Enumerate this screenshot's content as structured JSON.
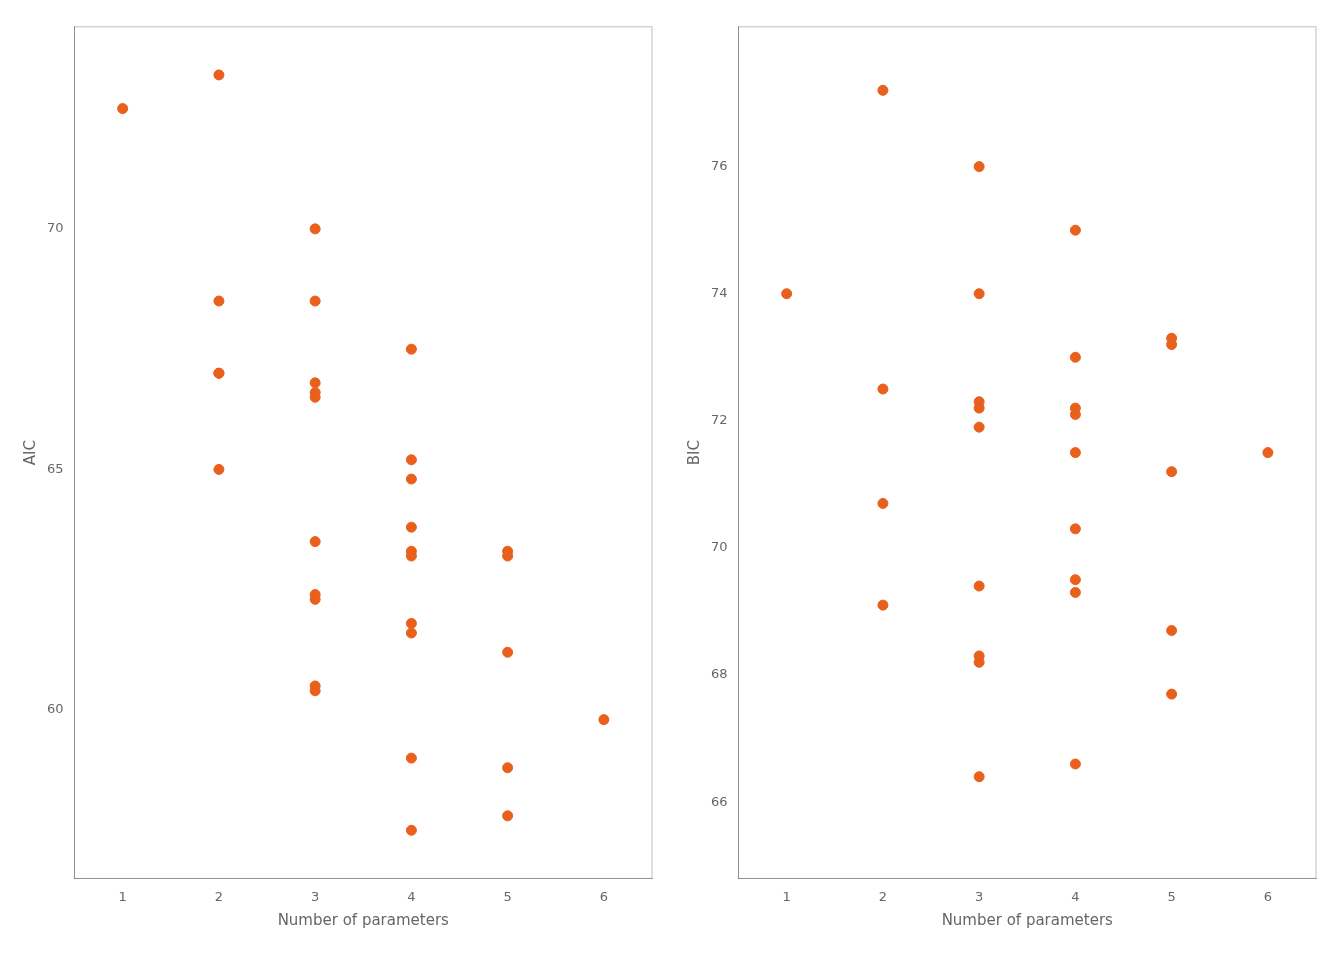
{
  "chart_data": [
    {
      "type": "scatter",
      "x": [
        1,
        2,
        2,
        2,
        2,
        2,
        3,
        3,
        3,
        3,
        3,
        3,
        3,
        3,
        3,
        3,
        4,
        4,
        4,
        4,
        4,
        4,
        4,
        4,
        4,
        4,
        5,
        5,
        5,
        5,
        5,
        6
      ],
      "values": [
        72.5,
        73.2,
        68.5,
        67.0,
        67.0,
        65.0,
        70.0,
        68.5,
        66.8,
        66.6,
        66.5,
        63.5,
        62.4,
        62.3,
        60.5,
        60.4,
        67.5,
        65.2,
        64.8,
        63.8,
        63.3,
        63.2,
        61.8,
        61.6,
        59.0,
        57.5,
        63.3,
        63.2,
        61.2,
        58.8,
        57.8,
        59.8
      ],
      "color": "#E8601C",
      "xlabel": "Number of parameters",
      "ylabel": "AIC",
      "xlim": [
        0.5,
        6.5
      ],
      "xticks": [
        1,
        2,
        3,
        4,
        5,
        6
      ],
      "ylim": [
        56.5,
        74.2
      ],
      "yticks": [
        60,
        65,
        70
      ],
      "grid": false
    },
    {
      "type": "scatter",
      "x": [
        1,
        2,
        2,
        2,
        2,
        3,
        3,
        3,
        3,
        3,
        3,
        3,
        3,
        3,
        4,
        4,
        4,
        4,
        4,
        4,
        4,
        4,
        4,
        5,
        5,
        5,
        5,
        5,
        6
      ],
      "values": [
        74.0,
        77.2,
        72.5,
        70.7,
        69.1,
        76.0,
        74.0,
        72.3,
        72.2,
        71.9,
        69.4,
        68.3,
        68.2,
        66.4,
        75.0,
        73.0,
        72.2,
        72.1,
        71.5,
        70.3,
        69.5,
        69.3,
        66.6,
        73.3,
        73.2,
        71.2,
        68.7,
        67.7,
        71.5
      ],
      "color": "#E8601C",
      "xlabel": "Number of parameters",
      "ylabel": "BIC",
      "xlim": [
        0.5,
        6.5
      ],
      "xticks": [
        1,
        2,
        3,
        4,
        5,
        6
      ],
      "ylim": [
        64.8,
        78.2
      ],
      "yticks": [
        66,
        68,
        70,
        72,
        74,
        76
      ],
      "grid": false
    }
  ]
}
